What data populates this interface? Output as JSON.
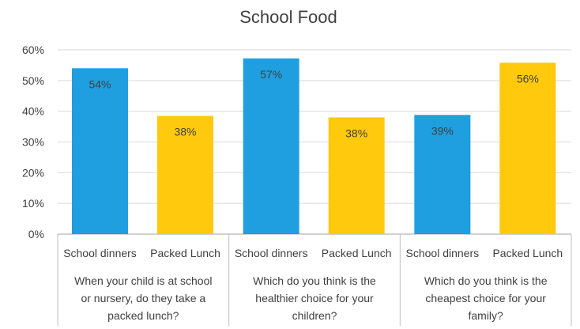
{
  "chart_data": {
    "type": "bar",
    "title": "School Food",
    "y_ticks": [
      "0%",
      "10%",
      "20%",
      "30%",
      "40%",
      "50%",
      "60%"
    ],
    "ylim": [
      0,
      60
    ],
    "grid": true,
    "legend": "none",
    "colors": {
      "School dinners": "#1f9fe0",
      "Packed Lunch": "#ffc90e",
      "grid": "#d9d9d9",
      "axis": "#bfbfbf",
      "text": "#404040"
    },
    "groups": [
      {
        "label": [
          "When your child is at school",
          "or nursery, do they take a",
          "packed lunch?"
        ],
        "bars": [
          {
            "category": "School dinners",
            "value": 54,
            "label": "54%"
          },
          {
            "category": "Packed Lunch",
            "value": 38.5,
            "label": "38%"
          }
        ]
      },
      {
        "label": [
          "Which do you think is the",
          "healthier choice for your",
          "children?"
        ],
        "bars": [
          {
            "category": "School dinners",
            "value": 57.2,
            "label": "57%"
          },
          {
            "category": "Packed Lunch",
            "value": 38,
            "label": "38%"
          }
        ]
      },
      {
        "label": [
          "Which do you think is the",
          "cheapest choice for your",
          "family?"
        ],
        "bars": [
          {
            "category": "School dinners",
            "value": 38.8,
            "label": "39%"
          },
          {
            "category": "Packed Lunch",
            "value": 55.8,
            "label": "56%"
          }
        ]
      }
    ]
  }
}
